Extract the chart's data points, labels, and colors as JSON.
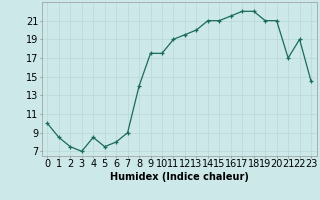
{
  "x": [
    0,
    1,
    2,
    3,
    4,
    5,
    6,
    7,
    8,
    9,
    10,
    11,
    12,
    13,
    14,
    15,
    16,
    17,
    18,
    19,
    20,
    21,
    22,
    23
  ],
  "y": [
    10.0,
    8.5,
    7.5,
    7.0,
    8.5,
    7.5,
    8.0,
    9.0,
    14.0,
    17.5,
    17.5,
    19.0,
    19.5,
    20.0,
    21.0,
    21.0,
    21.5,
    22.0,
    22.0,
    21.0,
    21.0,
    17.0,
    19.0,
    14.5
  ],
  "line_color": "#1a6b5a",
  "marker": "+",
  "bg_color": "#cce8e8",
  "grid_color_major": "#b8d8d8",
  "grid_color_minor": "#daeaea",
  "xlabel": "Humidex (Indice chaleur)",
  "ylabel_ticks": [
    7,
    9,
    11,
    13,
    15,
    17,
    19,
    21
  ],
  "xlim": [
    -0.5,
    23.5
  ],
  "ylim": [
    6.5,
    23.0
  ],
  "xlabel_fontsize": 7,
  "tick_fontsize": 7
}
